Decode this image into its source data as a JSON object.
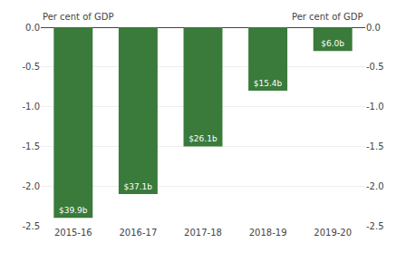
{
  "chart_data": {
    "type": "bar",
    "categories": [
      "2015-16",
      "2016-17",
      "2017-18",
      "2018-19",
      "2019-20"
    ],
    "values": [
      -2.4,
      -2.1,
      -1.5,
      -0.8,
      -0.3
    ],
    "annotations": [
      "$39.9b",
      "$37.1b",
      "$26.1b",
      "$15.4b",
      "$6.0b"
    ],
    "color": "#3a7a3a",
    "ylabel": "Per cent of GDP",
    "y2label": "Per cent of GDP",
    "ylim": [
      -2.5,
      0.0
    ],
    "yticks": [
      {
        "value": 0,
        "label": "0.0"
      },
      -0.5,
      {
        "value": -1,
        "label": "-1.0"
      },
      -1.5,
      {
        "value": -2,
        "label": "-2.0"
      },
      -2.5
    ],
    "y2lim": [
      -2.5,
      0.0
    ],
    "y2ticks": [
      {
        "value": 0,
        "label": "0.0"
      },
      -0.5,
      {
        "value": -1,
        "label": "-1.0"
      },
      -1.5,
      {
        "value": -2,
        "label": "-2.0"
      },
      -2.5
    ],
    "grid": true
  }
}
